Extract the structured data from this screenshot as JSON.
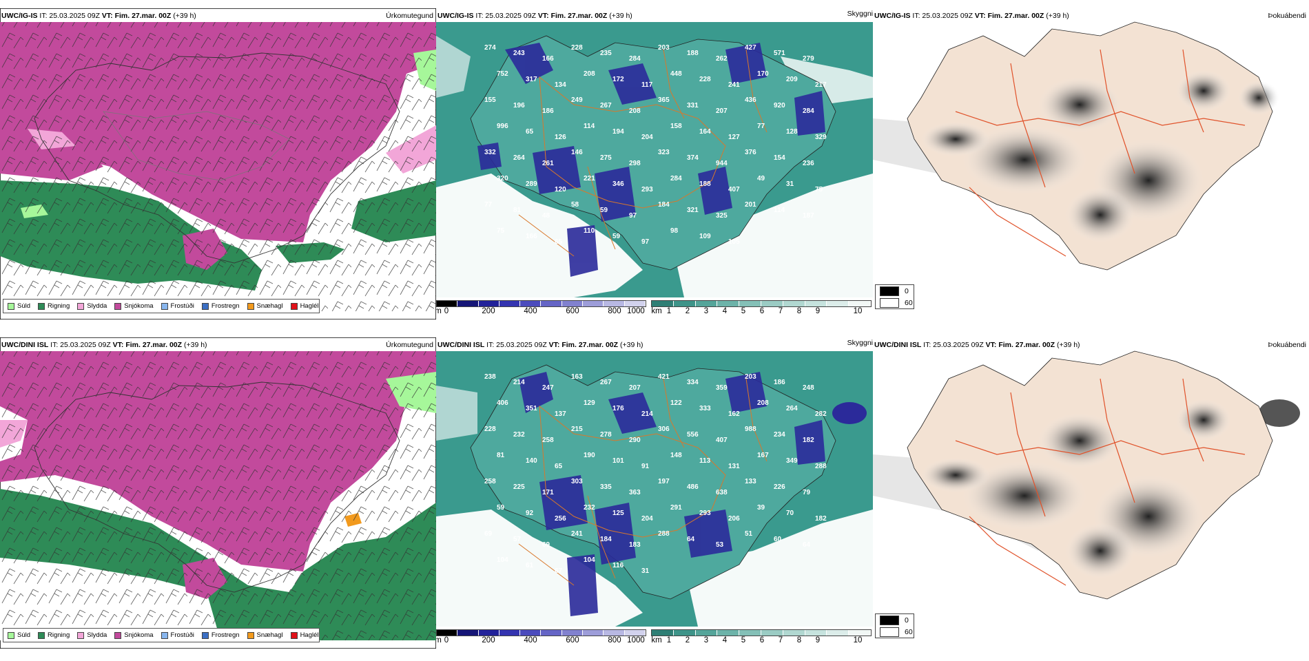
{
  "colors": {
    "sudd": "#a6f79a",
    "rigning": "#2e8b57",
    "slydda": "#f2a6d8",
    "snjokoma": "#c24a9c",
    "frostudi": "#88b6ee",
    "frostregn": "#3b6fc4",
    "snaehagl": "#f29a1d",
    "hagel": "#e0121a",
    "sea_teal": "#3a9a8e",
    "land_peach": "#f3e2d3",
    "roads": "#e0522a"
  },
  "precip_legend": [
    {
      "label": "Súld",
      "color": "#a6f79a"
    },
    {
      "label": "Rigning",
      "color": "#2e8b57"
    },
    {
      "label": "Slydda",
      "color": "#f2a6d8"
    },
    {
      "label": "Snjókoma",
      "color": "#c24a9c"
    },
    {
      "label": "Frostúði",
      "color": "#88b6ee"
    },
    {
      "label": "Frostregn",
      "color": "#3b6fc4"
    },
    {
      "label": "Snæhagl",
      "color": "#f29a1d"
    },
    {
      "label": "Haglél",
      "color": "#e0121a"
    }
  ],
  "cloud_base_scale": {
    "unit": "m",
    "labels": [
      "0",
      "200",
      "400",
      "600",
      "800",
      "1000"
    ]
  },
  "visibility_scale": {
    "unit": "km",
    "labels": [
      "1",
      "2",
      "3",
      "4",
      "5",
      "6",
      "7",
      "8",
      "9",
      "10"
    ]
  },
  "fog_legend": {
    "values": [
      "0",
      "60"
    ]
  },
  "rows": [
    {
      "model": "UWC/IG-IS",
      "run": "IT: 25.03.2025 09Z",
      "valid": "VT: Fim. 27.mar. 00Z",
      "lead": "(+39 h)",
      "right_titles": [
        "Úrkomutegund",
        "Skyggni",
        "Þokuábendi"
      ],
      "cloud_base_values": [
        "274",
        "243",
        "166",
        "228",
        "235",
        "284",
        "203",
        "188",
        "262",
        "427",
        "571",
        "279",
        "752",
        "317",
        "134",
        "208",
        "172",
        "117",
        "448",
        "228",
        "241",
        "170",
        "209",
        "217",
        "155",
        "196",
        "186",
        "249",
        "267",
        "208",
        "365",
        "331",
        "207",
        "436",
        "920",
        "284",
        "996",
        "65",
        "126",
        "114",
        "194",
        "204",
        "158",
        "164",
        "127",
        "77",
        "128",
        "329",
        "332",
        "264",
        "261",
        "146",
        "275",
        "298",
        "323",
        "374",
        "944",
        "376",
        "154",
        "236",
        "320",
        "289",
        "120",
        "221",
        "346",
        "293",
        "284",
        "188",
        "407",
        "49",
        "31",
        "75",
        "77",
        "81",
        "48",
        "58",
        "59",
        "97",
        "184",
        "321",
        "325",
        "201",
        "114",
        "187",
        "75",
        "166",
        "65",
        "110",
        "59",
        "97",
        "98",
        "109",
        "105"
      ]
    },
    {
      "model": "UWC/DINI ISL",
      "run": "IT: 25.03.2025 09Z",
      "valid": "VT: Fim. 27.mar. 00Z",
      "lead": "(+39 h)",
      "right_titles": [
        "Úrkomutegund",
        "Skyggni",
        "Þokuábendi"
      ],
      "cloud_base_values": [
        "238",
        "214",
        "247",
        "163",
        "267",
        "207",
        "421",
        "334",
        "359",
        "203",
        "186",
        "248",
        "406",
        "351",
        "137",
        "129",
        "176",
        "214",
        "122",
        "333",
        "162",
        "208",
        "264",
        "282",
        "228",
        "232",
        "258",
        "215",
        "278",
        "290",
        "306",
        "556",
        "407",
        "988",
        "234",
        "182",
        "81",
        "140",
        "65",
        "190",
        "101",
        "91",
        "148",
        "113",
        "131",
        "167",
        "349",
        "288",
        "258",
        "225",
        "171",
        "303",
        "335",
        "363",
        "197",
        "486",
        "638",
        "133",
        "226",
        "79",
        "59",
        "92",
        "256",
        "232",
        "125",
        "204",
        "291",
        "293",
        "206",
        "39",
        "70",
        "182",
        "69",
        "57",
        "69",
        "241",
        "184",
        "183",
        "288",
        "64",
        "53",
        "51",
        "60",
        "64",
        "104",
        "61",
        "67",
        "104",
        "116",
        "31"
      ]
    }
  ]
}
